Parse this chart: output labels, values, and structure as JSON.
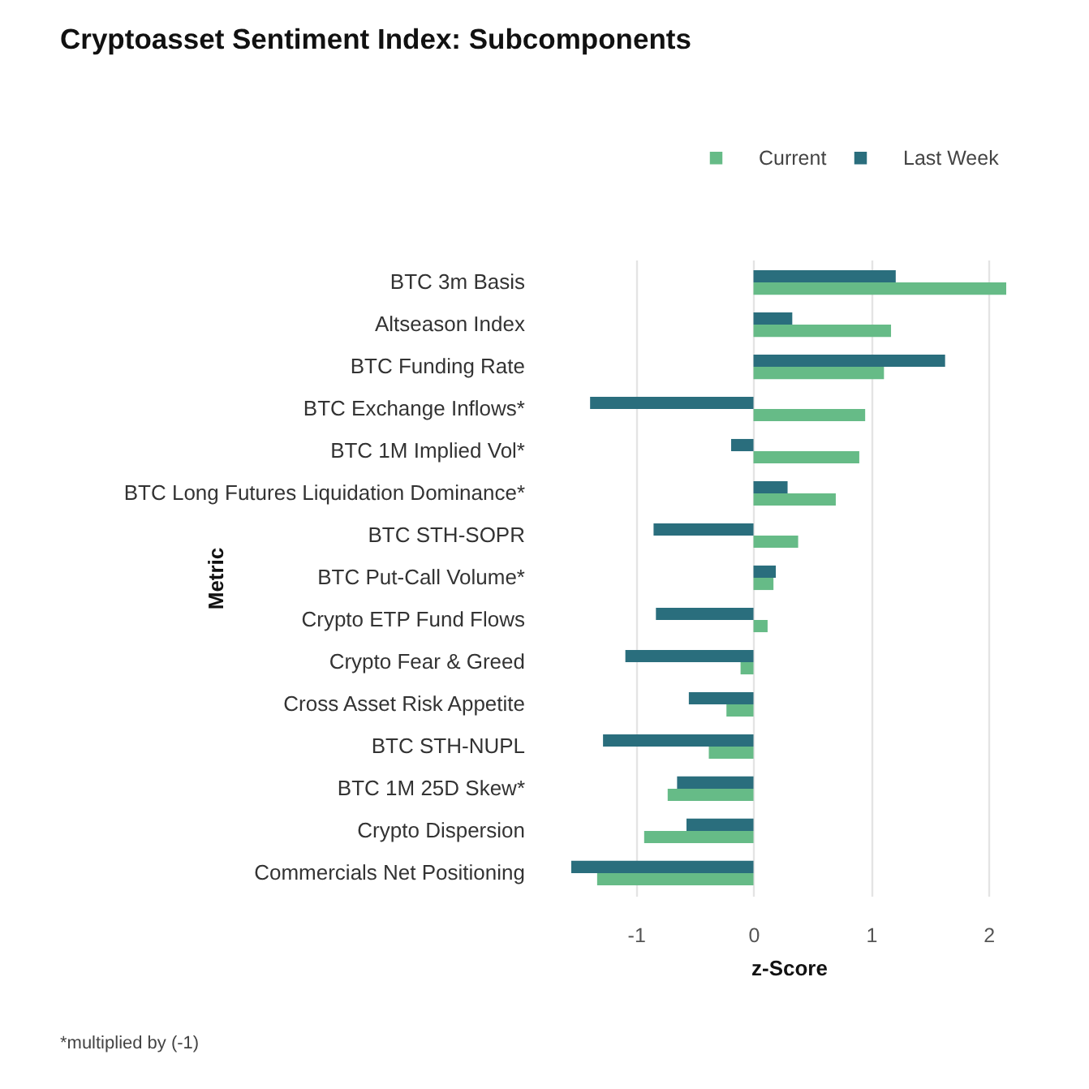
{
  "chart_data": {
    "type": "bar",
    "orientation": "horizontal",
    "title": "Cryptoasset Sentiment Index: Subcomponents",
    "xlabel": "z-Score",
    "ylabel": "Metric",
    "categories": [
      "BTC 3m Basis",
      "Altseason Index",
      "BTC Funding Rate",
      "BTC Exchange Inflows*",
      "BTC 1M Implied Vol*",
      "BTC Long Futures Liquidation Dominance*",
      "BTC STH-SOPR",
      "BTC Put-Call Volume*",
      "Crypto ETP Fund Flows",
      "Crypto Fear & Greed",
      "Cross Asset Risk Appetite",
      "BTC STH-NUPL",
      "BTC 1M 25D Skew*",
      "Crypto Dispersion",
      "Commercials Net Positioning"
    ],
    "series": [
      {
        "name": "Current",
        "color": "#66bb87",
        "values": [
          2.15,
          1.17,
          1.11,
          0.95,
          0.9,
          0.7,
          0.38,
          0.17,
          0.12,
          -0.11,
          -0.23,
          -0.38,
          -0.73,
          -0.93,
          -1.33
        ]
      },
      {
        "name": "Last Week",
        "color": "#2a6e7d",
        "values": [
          1.21,
          0.33,
          1.63,
          -1.39,
          -0.19,
          0.29,
          -0.85,
          0.19,
          -0.83,
          -1.09,
          -0.55,
          -1.28,
          -0.65,
          -0.57,
          -1.55
        ]
      }
    ],
    "xlim": [
      -1.55,
      2.15
    ],
    "xticks": [
      -1,
      0,
      1,
      2
    ],
    "grid": "x",
    "legend": "top right",
    "annotations": [
      "*multiplied by (-1)"
    ]
  }
}
